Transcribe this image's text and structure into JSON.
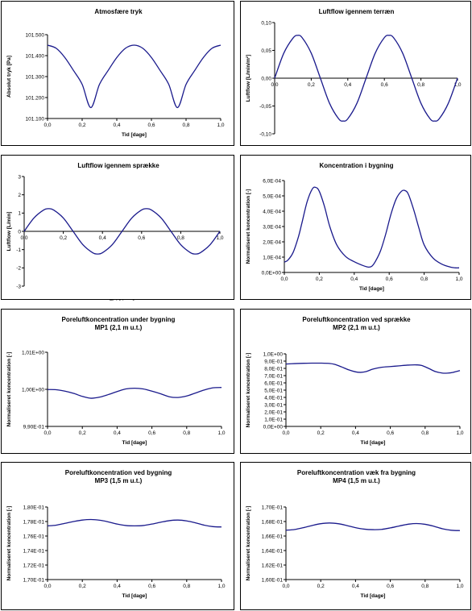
{
  "chart_data": [
    {
      "type": "line",
      "title": "Atmosfære tryk",
      "subtitle": "",
      "xlabel": "Tid [dage]",
      "ylabel": "Absolut tryk [Pa]",
      "xlim": [
        0,
        1
      ],
      "ylim": [
        101100,
        101500
      ],
      "xticks": [
        "0,0",
        "0,2",
        "0,4",
        "0,6",
        "0,8",
        "1,0"
      ],
      "yticks": [
        "101.100",
        "101.200",
        "101.300",
        "101.400",
        "101.500"
      ],
      "x_axis_at_zero": false,
      "grid": false,
      "series": [
        {
          "color": "#1a1a8c",
          "x": [
            0,
            0.05,
            0.1,
            0.15,
            0.2,
            0.25,
            0.3,
            0.35,
            0.4,
            0.45,
            0.5,
            0.55,
            0.6,
            0.65,
            0.7,
            0.75,
            0.8,
            0.85,
            0.9,
            0.95,
            1.0
          ],
          "y": [
            101450,
            101435,
            101391,
            101329,
            101263,
            101152,
            101263,
            101329,
            101391,
            101435,
            101450,
            101435,
            101391,
            101329,
            101263,
            101152,
            101263,
            101329,
            101391,
            101435,
            101450
          ]
        }
      ]
    },
    {
      "type": "line",
      "title": "Luftflow igennem terræn",
      "subtitle": "",
      "xlabel": "Tid [dage]",
      "ylabel": "Luftflow [L/min/m²]",
      "xlim": [
        0,
        1
      ],
      "ylim": [
        -0.1,
        0.1
      ],
      "xticks": [
        "0,0",
        "0,2",
        "0,4",
        "0,6",
        "0,8",
        "1,0"
      ],
      "yticks": [
        "-0,10",
        "-0,05",
        "0,00",
        "0,05",
        "0,10"
      ],
      "x_axis_at_zero": true,
      "grid": false,
      "series": [
        {
          "color": "#1a1a8c",
          "x": [
            0,
            0.05,
            0.1,
            0.125,
            0.15,
            0.2,
            0.25,
            0.3,
            0.35,
            0.375,
            0.4,
            0.45,
            0.5,
            0.55,
            0.6,
            0.625,
            0.65,
            0.7,
            0.75,
            0.8,
            0.85,
            0.875,
            0.9,
            0.95,
            1.0
          ],
          "y": [
            0,
            0.045,
            0.072,
            0.077,
            0.073,
            0.045,
            0,
            -0.045,
            -0.073,
            -0.077,
            -0.073,
            -0.045,
            0,
            0.045,
            0.073,
            0.077,
            0.073,
            0.045,
            0,
            -0.045,
            -0.073,
            -0.077,
            -0.073,
            -0.045,
            0
          ]
        }
      ]
    },
    {
      "type": "line",
      "title": "Luftflow igennem sprække",
      "subtitle": "",
      "xlabel": "Tid [dage]",
      "ylabel": "Luftflow [L/min]",
      "xlim": [
        0,
        1
      ],
      "ylim": [
        -3,
        3
      ],
      "xticks": [
        "0,0",
        "0,2",
        "0,4",
        "0,6",
        "0,8",
        "1,0"
      ],
      "yticks": [
        "-3",
        "-2",
        "-1",
        "0",
        "1",
        "2",
        "3"
      ],
      "x_axis_at_zero": true,
      "grid": false,
      "series": [
        {
          "color": "#1a1a8c",
          "x": [
            0,
            0.05,
            0.1,
            0.125,
            0.15,
            0.2,
            0.25,
            0.3,
            0.35,
            0.375,
            0.4,
            0.45,
            0.5,
            0.55,
            0.6,
            0.625,
            0.65,
            0.7,
            0.75,
            0.8,
            0.85,
            0.875,
            0.9,
            0.95,
            1.0
          ],
          "y": [
            0,
            0.73,
            1.17,
            1.24,
            1.17,
            0.73,
            0,
            -0.73,
            -1.17,
            -1.24,
            -1.17,
            -0.73,
            0,
            0.73,
            1.17,
            1.24,
            1.17,
            0.73,
            0,
            -0.73,
            -1.17,
            -1.24,
            -1.17,
            -0.73,
            0
          ]
        }
      ]
    },
    {
      "type": "line",
      "title": "Koncentration i bygning",
      "subtitle": "",
      "xlabel": "Tid [dage]",
      "ylabel": "Normaliseret koncentration [-]",
      "xlim": [
        0,
        1
      ],
      "ylim": [
        0,
        0.0006
      ],
      "xticks": [
        "0,0",
        "0,2",
        "0,4",
        "0,6",
        "0,8",
        "1,0"
      ],
      "yticks": [
        "0,0E+00",
        "1,0E-04",
        "2,0E-04",
        "3,0E-04",
        "4,0E-04",
        "5,0E-04",
        "6,0E-04"
      ],
      "x_axis_at_zero": false,
      "grid": false,
      "series": [
        {
          "color": "#1a1a8c",
          "x": [
            0,
            0.02,
            0.05,
            0.08,
            0.1,
            0.13,
            0.16,
            0.18,
            0.2,
            0.23,
            0.26,
            0.3,
            0.35,
            0.4,
            0.45,
            0.48,
            0.5,
            0.52,
            0.55,
            0.58,
            0.61,
            0.64,
            0.67,
            0.69,
            0.71,
            0.74,
            0.77,
            0.8,
            0.85,
            0.9,
            0.95,
            0.98,
            1.0
          ],
          "y": [
            6.8e-05,
            8e-05,
            0.00013,
            0.00023,
            0.00032,
            0.00046,
            0.000545,
            0.000555,
            0.00053,
            0.00043,
            0.0003,
            0.00018,
            0.000105,
            7e-05,
            4.5e-05,
            3.5e-05,
            4e-05,
            7e-05,
            0.00014,
            0.00025,
            0.00038,
            0.00048,
            0.00053,
            0.000535,
            0.00051,
            0.00041,
            0.00029,
            0.00018,
            9.5e-05,
            5.5e-05,
            3.5e-05,
            3e-05,
            3e-05
          ]
        }
      ]
    },
    {
      "type": "line",
      "title": "Poreluftkoncentration under bygning",
      "subtitle": "MP1 (2,1 m u.t.)",
      "xlabel": "Tid [dage]",
      "ylabel": "Normaliseret koncentration [-]",
      "xlim": [
        0,
        1
      ],
      "ylim": [
        0.99,
        1.01
      ],
      "xticks": [
        "0,0",
        "0,2",
        "0,4",
        "0,6",
        "0,8",
        "1,0"
      ],
      "yticks": [
        "9,90E-01",
        "1,00E+00",
        "1,01E+00"
      ],
      "x_axis_at_zero": false,
      "grid": false,
      "series": [
        {
          "color": "#1a1a8c",
          "x": [
            0,
            0.05,
            0.1,
            0.15,
            0.2,
            0.25,
            0.3,
            0.35,
            0.4,
            0.45,
            0.5,
            0.55,
            0.6,
            0.65,
            0.7,
            0.75,
            0.8,
            0.85,
            0.9,
            0.95,
            1.0
          ],
          "y": [
            0.99995,
            0.9999,
            0.9995,
            0.9989,
            0.9981,
            0.9976,
            0.9979,
            0.9986,
            0.9994,
            1.0001,
            1.0003,
            1.0001,
            0.9995,
            0.9988,
            0.998,
            0.9978,
            0.9982,
            0.999,
            0.9998,
            1.0004,
            1.0005
          ]
        }
      ]
    },
    {
      "type": "line",
      "title": "Poreluftkoncentration ved sprække",
      "subtitle": "MP2 (2,1 m u.t.)",
      "xlabel": "Tid [dage]",
      "ylabel": "Normaliseret koncentration [-]",
      "xlim": [
        0,
        1
      ],
      "ylim": [
        0,
        1
      ],
      "xticks": [
        "0,0",
        "0,2",
        "0,4",
        "0,6",
        "0,8",
        "1,0"
      ],
      "yticks": [
        "0,0E+00",
        "1,0E-01",
        "2,0E-01",
        "3,0E-01",
        "4,0E-01",
        "5,0E-01",
        "6,0E-01",
        "7,0E-01",
        "8,0E-01",
        "9,0E-01",
        "1,0E+00"
      ],
      "x_axis_at_zero": false,
      "grid": false,
      "series": [
        {
          "color": "#1a1a8c",
          "x": [
            0,
            0.05,
            0.1,
            0.15,
            0.2,
            0.25,
            0.28,
            0.32,
            0.36,
            0.4,
            0.43,
            0.46,
            0.5,
            0.55,
            0.6,
            0.65,
            0.7,
            0.75,
            0.78,
            0.82,
            0.86,
            0.9,
            0.93,
            0.96,
            1.0
          ],
          "y": [
            0.86,
            0.866,
            0.87,
            0.872,
            0.872,
            0.868,
            0.855,
            0.82,
            0.78,
            0.752,
            0.745,
            0.755,
            0.79,
            0.815,
            0.825,
            0.835,
            0.845,
            0.848,
            0.84,
            0.8,
            0.755,
            0.735,
            0.735,
            0.745,
            0.77
          ]
        }
      ]
    },
    {
      "type": "line",
      "title": "Poreluftkoncentration ved bygning",
      "subtitle": "MP3 (1,5 m u.t.)",
      "xlabel": "Tid [dage]",
      "ylabel": "Normaliseret koncentration [-]",
      "xlim": [
        0,
        1
      ],
      "ylim": [
        0.17,
        0.18
      ],
      "xticks": [
        "0,0",
        "0,2",
        "0,4",
        "0,6",
        "0,8",
        "1,0"
      ],
      "yticks": [
        "1,70E-01",
        "1,72E-01",
        "1,74E-01",
        "1,76E-01",
        "1,78E-01",
        "1,80E-01"
      ],
      "x_axis_at_zero": false,
      "grid": false,
      "series": [
        {
          "color": "#1a1a8c",
          "x": [
            0,
            0.05,
            0.1,
            0.15,
            0.2,
            0.25,
            0.3,
            0.35,
            0.4,
            0.45,
            0.5,
            0.55,
            0.6,
            0.65,
            0.7,
            0.75,
            0.8,
            0.85,
            0.9,
            0.95,
            1.0
          ],
          "y": [
            0.1774,
            0.1775,
            0.17775,
            0.178,
            0.1782,
            0.17828,
            0.17818,
            0.17795,
            0.17765,
            0.17745,
            0.1774,
            0.17745,
            0.17765,
            0.1779,
            0.17812,
            0.1782,
            0.17808,
            0.17782,
            0.1775,
            0.1773,
            0.17725
          ]
        }
      ]
    },
    {
      "type": "line",
      "title": "Poreluftkoncentration væk fra bygning",
      "subtitle": "MP4 (1,5 m u.t.)",
      "xlabel": "Tid [dage]",
      "ylabel": "Normaliseret koncentration [-]",
      "xlim": [
        0,
        1
      ],
      "ylim": [
        0.16,
        0.17
      ],
      "xticks": [
        "0,0",
        "0,2",
        "0,4",
        "0,6",
        "0,8",
        "1,0"
      ],
      "yticks": [
        "1,60E-01",
        "1,62E-01",
        "1,64E-01",
        "1,66E-01",
        "1,68E-01",
        "1,70E-01"
      ],
      "x_axis_at_zero": false,
      "grid": false,
      "series": [
        {
          "color": "#1a1a8c",
          "x": [
            0,
            0.05,
            0.1,
            0.15,
            0.2,
            0.25,
            0.3,
            0.35,
            0.4,
            0.45,
            0.5,
            0.55,
            0.6,
            0.65,
            0.7,
            0.75,
            0.8,
            0.85,
            0.9,
            0.95,
            1.0
          ],
          "y": [
            0.1668,
            0.1669,
            0.16715,
            0.16745,
            0.1677,
            0.1678,
            0.1677,
            0.16745,
            0.16715,
            0.16695,
            0.16688,
            0.16692,
            0.16712,
            0.16738,
            0.16762,
            0.16772,
            0.16762,
            0.16735,
            0.167,
            0.1668,
            0.16675
          ]
        }
      ]
    }
  ]
}
